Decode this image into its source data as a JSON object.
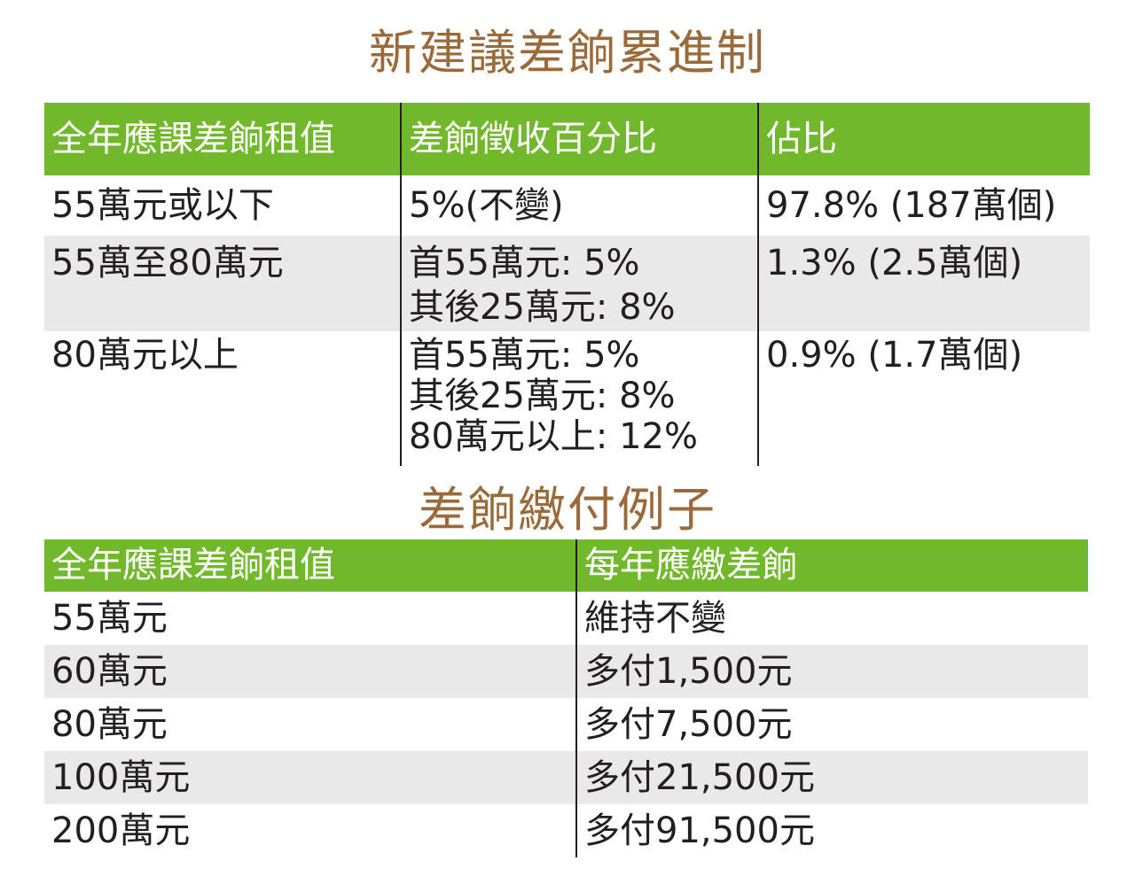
{
  "title1": "新建議差餉累進制",
  "table1": {
    "headers": [
      "全年應課差餉租值",
      "差餉徵收百分比",
      "佔比"
    ],
    "rows": [
      {
        "value": "55萬元或以下",
        "rate": [
          "5%(不變)"
        ],
        "share": "97.8% (187萬個)"
      },
      {
        "value": "55萬至80萬元",
        "rate": [
          "首55萬元: 5%",
          "其後25萬元: 8%"
        ],
        "share": "1.3% (2.5萬個)"
      },
      {
        "value": "80萬元以上",
        "rate": [
          "首55萬元: 5%",
          "其後25萬元: 8%",
          "80萬元以上: 12%"
        ],
        "share": "0.9% (1.7萬個)"
      }
    ]
  },
  "title2": "差餉繳付例子",
  "table2": {
    "headers": [
      "全年應課差餉租值",
      "每年應繳差餉"
    ],
    "rows": [
      {
        "value": "55萬元",
        "payment": "維持不變"
      },
      {
        "value": "60萬元",
        "payment": "多付1,500元"
      },
      {
        "value": "80萬元",
        "payment": "多付7,500元"
      },
      {
        "value": "100萬元",
        "payment": "多付21,500元"
      },
      {
        "value": "200萬元",
        "payment": "多付91,500元"
      }
    ]
  },
  "colors": {
    "header_green": "#72b82d",
    "title_brown": "#9a6a3a",
    "row_shade": "#e9e9e9"
  }
}
